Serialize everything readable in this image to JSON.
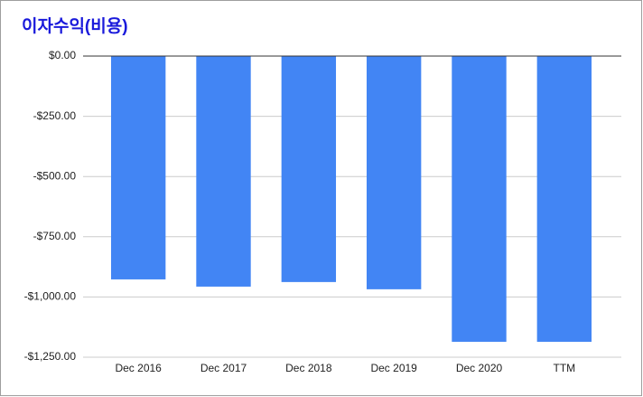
{
  "chart_data": {
    "type": "bar",
    "title": "이자수익(비용)",
    "categories": [
      "Dec 2016",
      "Dec 2017",
      "Dec 2018",
      "Dec 2019",
      "Dec 2020",
      "TTM"
    ],
    "values": [
      -927,
      -957,
      -938,
      -968,
      -1186,
      -1186
    ],
    "color": "#4285f4",
    "ylim": [
      -1250,
      0
    ],
    "yticks": [
      {
        "value": 0,
        "label": "$0.00"
      },
      {
        "value": -250,
        "label": "-$250.00"
      },
      {
        "value": -500,
        "label": "-$500.00"
      },
      {
        "value": -750,
        "label": "-$750.00"
      },
      {
        "value": -1000,
        "label": "-$1,000.00"
      },
      {
        "value": -1250,
        "label": "-$1,250.00"
      }
    ],
    "grid": true
  }
}
